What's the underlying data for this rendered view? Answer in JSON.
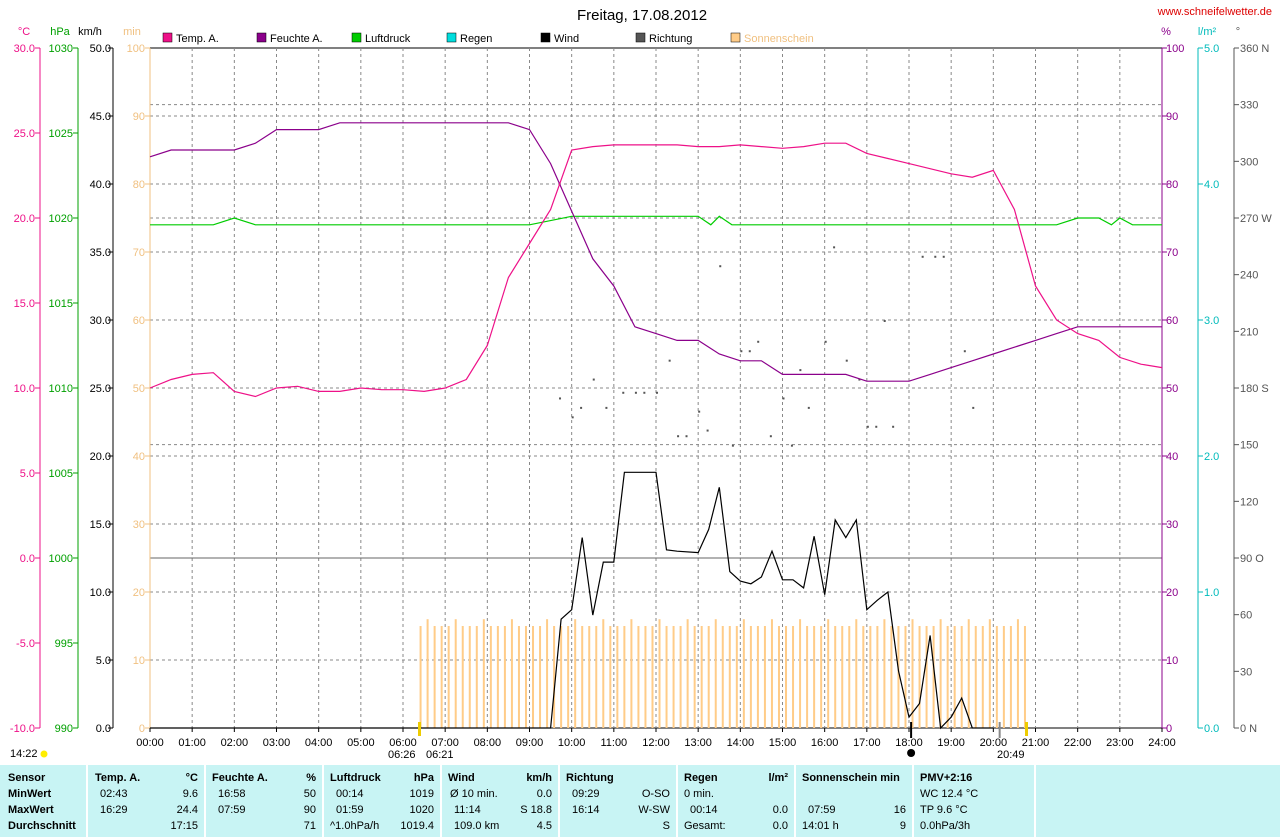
{
  "title": "Freitag, 17.08.2012",
  "website": "www.schneifelwetter.de",
  "colors": {
    "temp": "#ee1188",
    "humidity": "#8b008b",
    "pressure": "#00cc00",
    "rain": "#00dddd",
    "wind": "#000000",
    "direction": "#555555",
    "sun": "#ffcc88"
  },
  "legend": [
    "Temp. A.",
    "Feuchte A.",
    "Luftdruck",
    "Regen",
    "Wind",
    "Richtung",
    "Sonnenschein"
  ],
  "units_left": [
    "°C",
    "hPa",
    "km/h",
    "min"
  ],
  "units_right": [
    "%",
    "l/m²",
    "°"
  ],
  "axes": {
    "temp_ticks": [
      "30.0",
      "25.0",
      "20.0",
      "15.0",
      "10.0",
      "5.0",
      "0.0",
      "-5.0",
      "-10.0"
    ],
    "hpa_ticks": [
      "1030",
      "1025",
      "1020",
      "1015",
      "1010",
      "1005",
      "1000",
      "995",
      "990"
    ],
    "wind_ticks": [
      "50.0",
      "45.0",
      "40.0",
      "35.0",
      "30.0",
      "25.0",
      "20.0",
      "15.0",
      "10.0",
      "5.0",
      "0.0"
    ],
    "min_ticks": [
      "100",
      "90",
      "80",
      "70",
      "60",
      "50",
      "40",
      "30",
      "20",
      "10",
      "0"
    ],
    "hum_ticks": [
      "100",
      "90",
      "80",
      "70",
      "60",
      "50",
      "40",
      "30",
      "20",
      "10",
      "0"
    ],
    "rain_ticks": [
      "5.0",
      "4.0",
      "3.0",
      "2.0",
      "1.0",
      "0.0"
    ],
    "dir_ticks": [
      "360 N",
      "330",
      "300",
      "270 W",
      "240",
      "210",
      "180 S",
      "150",
      "120",
      "90 O",
      "60",
      "30",
      "0 N"
    ],
    "x_ticks": [
      "00:00",
      "01:00",
      "02:00",
      "03:00",
      "04:00",
      "05:00",
      "06:00",
      "07:00",
      "08:00",
      "09:00",
      "10:00",
      "11:00",
      "12:00",
      "13:00",
      "14:00",
      "15:00",
      "16:00",
      "17:00",
      "18:00",
      "19:00",
      "20:00",
      "21:00",
      "22:00",
      "23:00",
      "24:00"
    ]
  },
  "markers": {
    "now": "14:22",
    "sunrise": "06:26",
    "transit": "06:21",
    "sunset": "20:49"
  },
  "chart_data": {
    "type": "line",
    "title": "Freitag, 17.08.2012",
    "x_range": [
      "00:00",
      "24:00"
    ],
    "grid": true,
    "series": [
      {
        "name": "Temp. A.",
        "unit": "°C",
        "x": [
          0,
          0.5,
          1,
          1.5,
          2,
          2.5,
          3,
          3.5,
          4,
          4.5,
          5,
          5.5,
          6,
          6.5,
          7,
          7.5,
          8,
          8.5,
          9,
          9.5,
          10,
          10.5,
          11,
          11.5,
          12,
          12.5,
          13,
          13.5,
          14,
          14.5,
          15,
          15.5,
          16,
          16.5,
          16.5,
          17,
          17.5,
          18,
          18.5,
          19,
          19.5,
          20,
          20.5,
          21,
          21.5,
          22,
          22.5,
          23,
          23.5,
          24
        ],
        "y": [
          10.0,
          10.5,
          10.8,
          10.9,
          9.8,
          9.5,
          10.0,
          10.1,
          9.8,
          9.8,
          10.0,
          9.9,
          9.9,
          9.8,
          10.0,
          10.5,
          12.5,
          16.5,
          18.5,
          20.5,
          24.0,
          24.2,
          24.3,
          24.3,
          24.3,
          24.3,
          24.2,
          24.2,
          24.3,
          24.2,
          24.1,
          24.2,
          24.4,
          24.4,
          24.4,
          23.8,
          23.5,
          23.2,
          22.9,
          22.6,
          22.4,
          22.8,
          20.5,
          16.0,
          14.0,
          13.2,
          12.8,
          11.8,
          11.4,
          11.2
        ]
      },
      {
        "name": "Feuchte A.",
        "unit": "%",
        "x": [
          0,
          0.5,
          1,
          2,
          2.5,
          3,
          3.5,
          4,
          4.5,
          5,
          5.5,
          6,
          6.5,
          7,
          7.5,
          8,
          8.5,
          9,
          9.5,
          10,
          10.5,
          11,
          11.5,
          12,
          12.5,
          13,
          13.5,
          14,
          14.5,
          15,
          15.5,
          16,
          16.5,
          17,
          17.5,
          18,
          18.5,
          19,
          19.5,
          20,
          20.5,
          21,
          21.5,
          22,
          22.5,
          23,
          23.5,
          24
        ],
        "y": [
          84,
          85,
          85,
          85,
          86,
          88,
          88,
          88,
          89,
          89,
          89,
          89,
          89,
          89,
          89,
          89,
          89,
          88,
          83,
          76,
          69,
          65,
          59,
          58,
          57,
          57,
          55,
          54,
          54,
          52,
          52,
          52,
          52,
          51,
          51,
          51,
          52,
          53,
          54,
          55,
          56,
          57,
          58,
          59,
          59,
          59,
          59,
          59
        ]
      },
      {
        "name": "Luftdruck",
        "unit": "hPa",
        "x": [
          0,
          1.5,
          2,
          2.5,
          3,
          4,
          5,
          6,
          7,
          8,
          9,
          10,
          11,
          12,
          13,
          13.3,
          13.5,
          13.8,
          14,
          15,
          16,
          17,
          18,
          19,
          20,
          21,
          21.5,
          22,
          22.5,
          22.8,
          23,
          23.3,
          23.6,
          24
        ],
        "y": [
          1019.6,
          1019.6,
          1020,
          1019.6,
          1019.6,
          1019.6,
          1019.6,
          1019.6,
          1019.6,
          1019.6,
          1019.6,
          1020.1,
          1020.1,
          1020.1,
          1020.1,
          1019.6,
          1020.1,
          1019.6,
          1019.6,
          1019.6,
          1019.6,
          1019.6,
          1019.6,
          1019.6,
          1019.6,
          1019.6,
          1019.6,
          1020,
          1020,
          1019.6,
          1020,
          1019.6,
          1019.6,
          1019.6
        ]
      },
      {
        "name": "Wind",
        "unit": "km/h",
        "x": [
          0,
          9.5,
          9.75,
          10,
          10.25,
          10.5,
          10.75,
          11,
          11.25,
          11.5,
          11.75,
          12,
          12.25,
          12.5,
          13,
          13.25,
          13.5,
          13.75,
          14,
          14.25,
          14.5,
          14.75,
          15,
          15.25,
          15.5,
          15.75,
          16,
          16.25,
          16.5,
          16.75,
          17,
          17.25,
          17.5,
          17.75,
          18,
          18.25,
          18.5,
          18.75,
          19,
          19.25,
          19.5,
          19.75,
          20
        ],
        "y": [
          0,
          0,
          8,
          8.7,
          14,
          8.3,
          12.2,
          12.2,
          18.8,
          18.8,
          18.8,
          18.8,
          13.1,
          13,
          12.9,
          14.6,
          17.7,
          11.5,
          10.8,
          10.6,
          11.1,
          13,
          10.9,
          10.9,
          10.3,
          14.1,
          9.8,
          15.3,
          14,
          15.3,
          8.7,
          9.4,
          10,
          4.2,
          0.8,
          1.8,
          6.8,
          0,
          0.8,
          2.2,
          0,
          0,
          0
        ]
      },
      {
        "name": "Sonnenschein",
        "unit": "min",
        "x_range": [
          "06:15",
          "20:45"
        ],
        "bar_interval_min": 10,
        "typical_value": 15
      }
    ],
    "y_axes": {
      "temp": [
        -10,
        30
      ],
      "pressure": [
        990,
        1030
      ],
      "wind": [
        0,
        50
      ],
      "sun": [
        0,
        100
      ],
      "humidity": [
        0,
        100
      ],
      "rain": [
        0,
        5
      ],
      "direction": [
        0,
        360
      ]
    }
  },
  "footer": {
    "row_labels": [
      "Sensor",
      "MinWert",
      "MaxWert",
      "Durchschnitt"
    ],
    "temp": {
      "h1": "Temp. A.",
      "h2": "°C",
      "min_t": "02:43",
      "min_v": "9.6",
      "max_t": "16:29",
      "max_v": "24.4",
      "avg": "17:15"
    },
    "hum": {
      "h1": "Feuchte A.",
      "h2": "%",
      "min_t": "16:58",
      "min_v": "50",
      "max_t": "07:59",
      "max_v": "90",
      "avg": "71"
    },
    "press": {
      "h1": "Luftdruck",
      "h2": "hPa",
      "min_t": "00:14",
      "min_v": "1019",
      "max_t": "01:59",
      "max_v": "1020",
      "avg_l": "^1.0hPa/h",
      "avg": "1019.4"
    },
    "wind": {
      "h1": "Wind",
      "h2": "km/h",
      "min_t": "Ø 10 min.",
      "min_v": "0.0",
      "max_t": "11:14",
      "max_v": "S 18.8",
      "avg_l": "109.0 km",
      "avg": "4.5"
    },
    "dir": {
      "h1": "Richtung",
      "min_t": "09:29",
      "min_v": "O-SO",
      "max_t": "16:14",
      "max_v": "W-SW",
      "avg": "S"
    },
    "rain": {
      "h1": "Regen",
      "h2": "l/m²",
      "min_t": "0 min.",
      "max_t": "00:14",
      "max_v": "0.0",
      "avg_l": "Gesamt:",
      "avg": "0.0"
    },
    "sun": {
      "h1": "Sonnenschein min",
      "max_t": "07:59",
      "max_v": "16",
      "avg_l": "14:01 h",
      "avg": "9"
    },
    "pmv": {
      "h1": "PMV+2:16",
      "l1": "WC 12.4 °C",
      "l2": "TP 9.6 °C",
      "l3": "0.0hPa/3h"
    }
  }
}
